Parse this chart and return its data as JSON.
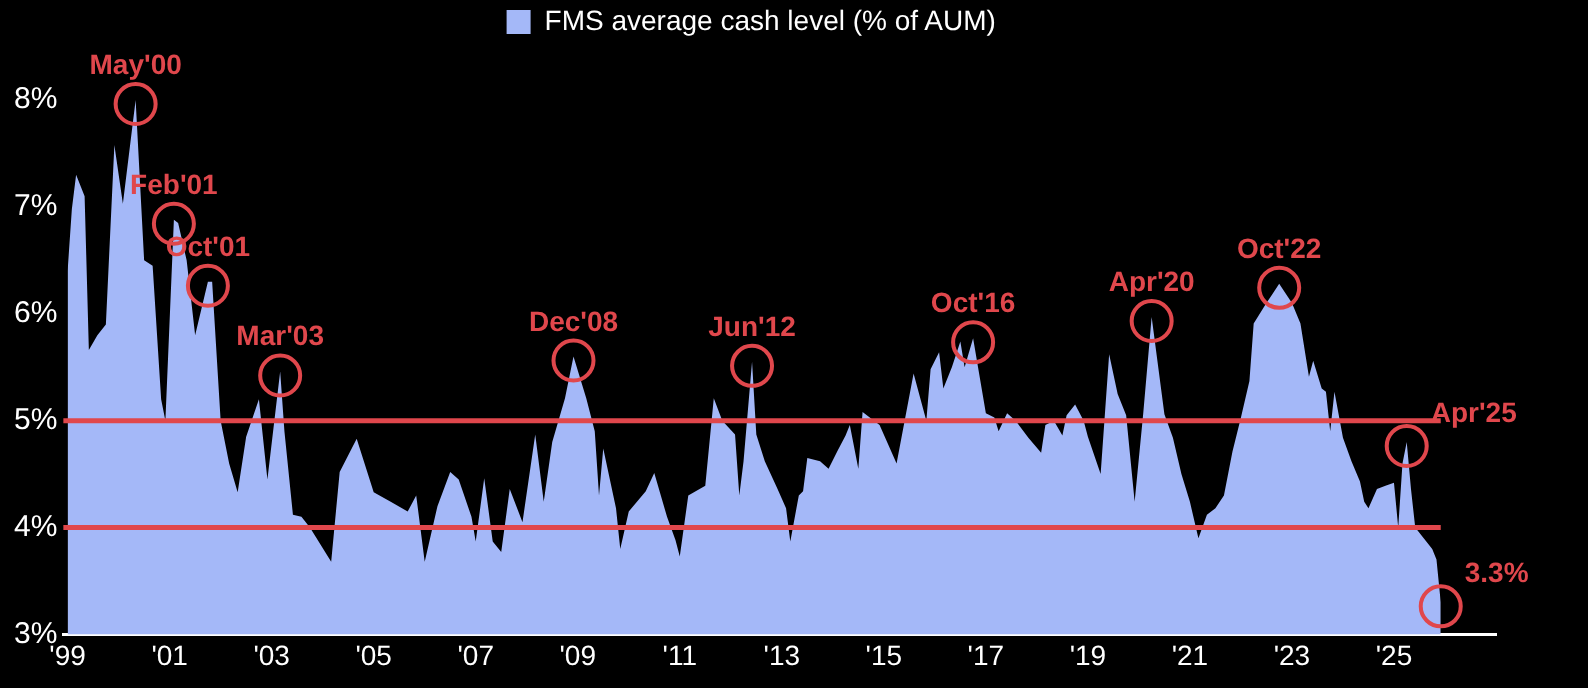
{
  "chart_data": {
    "type": "area",
    "legend": "top",
    "marker": "none",
    "grid": false,
    "series": [
      {
        "name": "FMS average cash level (% of AUM)",
        "color": "#a4b8f8",
        "x": [
          "1999-01",
          "1999-02",
          "1999-03",
          "1999-05",
          "1999-06",
          "1999-08",
          "1999-10",
          "1999-12",
          "2000-02",
          "2000-05",
          "2000-07",
          "2000-09",
          "2000-11",
          "2000-12",
          "2001-02",
          "2001-03",
          "2001-05",
          "2001-07",
          "2001-10",
          "2001-11",
          "2002-01",
          "2002-03",
          "2002-05",
          "2002-07",
          "2002-10",
          "2002-12",
          "2003-03",
          "2003-04",
          "2003-06",
          "2003-08",
          "2003-10",
          "2004-03",
          "2004-05",
          "2004-09",
          "2004-11",
          "2005-01",
          "2005-05",
          "2005-09",
          "2005-11",
          "2006-01",
          "2006-04",
          "2006-07",
          "2006-09",
          "2006-12",
          "2007-01",
          "2007-03",
          "2007-05",
          "2007-07",
          "2007-09",
          "2007-12",
          "2008-03",
          "2008-05",
          "2008-07",
          "2008-10",
          "2008-12",
          "2009-03",
          "2009-05",
          "2009-06",
          "2009-07",
          "2009-10",
          "2009-11",
          "2010-01",
          "2010-05",
          "2010-07",
          "2010-10",
          "2010-12",
          "2011-01",
          "2011-03",
          "2011-07",
          "2011-09",
          "2011-11",
          "2012-02",
          "2012-03",
          "2012-04",
          "2012-06",
          "2012-07",
          "2012-09",
          "2012-12",
          "2013-02",
          "2013-03",
          "2013-05",
          "2013-06",
          "2013-07",
          "2013-10",
          "2013-12",
          "2014-02",
          "2014-04",
          "2014-05",
          "2014-07",
          "2014-08",
          "2014-12",
          "2015-04",
          "2015-08",
          "2015-11",
          "2015-12",
          "2016-02",
          "2016-03",
          "2016-05",
          "2016-07",
          "2016-08",
          "2016-10",
          "2017-01",
          "2017-03",
          "2017-04",
          "2017-06",
          "2017-08",
          "2017-11",
          "2018-02",
          "2018-03",
          "2018-05",
          "2018-07",
          "2018-08",
          "2018-10",
          "2018-12",
          "2019-01",
          "2019-04",
          "2019-06",
          "2019-08",
          "2019-10",
          "2019-12",
          "2020-02",
          "2020-04",
          "2020-07",
          "2020-09",
          "2020-11",
          "2021-01",
          "2021-03",
          "2021-05",
          "2021-07",
          "2021-09",
          "2021-11",
          "2022-01",
          "2022-03",
          "2022-04",
          "2022-07",
          "2022-09",
          "2022-10",
          "2023-01",
          "2023-03",
          "2023-05",
          "2023-06",
          "2023-08",
          "2023-09",
          "2023-10",
          "2023-11",
          "2024-01",
          "2024-03",
          "2024-05",
          "2024-06",
          "2024-07",
          "2024-09",
          "2024-11",
          "2025-01",
          "2025-02",
          "2025-03",
          "2025-04",
          "2025-05",
          "2025-06",
          "2025-08",
          "2025-10",
          "2025-11",
          "2025-12"
        ],
        "values": [
          6.4,
          6.98,
          7.3,
          7.1,
          5.66,
          5.8,
          5.9,
          7.58,
          7.03,
          8.0,
          6.5,
          6.45,
          5.2,
          5.0,
          6.88,
          6.85,
          6.5,
          5.8,
          6.3,
          6.3,
          5.0,
          4.6,
          4.33,
          4.85,
          5.2,
          4.45,
          5.46,
          4.9,
          4.12,
          4.1,
          4.0,
          3.68,
          4.52,
          4.83,
          4.58,
          4.33,
          4.24,
          4.15,
          4.3,
          3.68,
          4.2,
          4.52,
          4.45,
          4.1,
          3.87,
          4.46,
          3.87,
          3.77,
          4.36,
          4.05,
          4.87,
          4.24,
          4.8,
          5.21,
          5.6,
          5.21,
          4.9,
          4.3,
          4.74,
          4.18,
          3.8,
          4.15,
          4.34,
          4.51,
          4.1,
          3.88,
          3.73,
          4.3,
          4.39,
          5.21,
          5.0,
          4.87,
          4.3,
          4.62,
          5.55,
          4.87,
          4.62,
          4.36,
          4.18,
          3.87,
          4.3,
          4.34,
          4.65,
          4.62,
          4.55,
          4.71,
          4.86,
          4.96,
          4.55,
          5.08,
          4.96,
          4.6,
          5.44,
          5.0,
          5.48,
          5.64,
          5.3,
          5.5,
          5.74,
          5.5,
          5.77,
          5.07,
          5.03,
          4.9,
          5.07,
          5.0,
          4.84,
          4.7,
          4.96,
          5.0,
          4.86,
          5.05,
          5.15,
          5.0,
          4.85,
          4.5,
          5.62,
          5.25,
          5.05,
          4.24,
          5.06,
          5.97,
          5.06,
          4.84,
          4.5,
          4.24,
          3.9,
          4.12,
          4.18,
          4.3,
          4.71,
          5.03,
          5.37,
          5.91,
          6.1,
          6.22,
          6.28,
          6.1,
          5.91,
          5.41,
          5.56,
          5.3,
          5.27,
          4.9,
          5.27,
          4.84,
          4.62,
          4.43,
          4.24,
          4.18,
          4.36,
          4.39,
          4.42,
          4.0,
          4.6,
          4.8,
          4.36,
          4.0,
          3.9,
          3.8,
          3.7,
          3.3
        ]
      }
    ],
    "xlim": [
      "1998-12",
      "2027-01"
    ],
    "xticks": [
      {
        "value": "1999",
        "label": "'99"
      },
      {
        "value": "2001",
        "label": "'01"
      },
      {
        "value": "2003",
        "label": "'03"
      },
      {
        "value": "2005",
        "label": "'05"
      },
      {
        "value": "2007",
        "label": "'07"
      },
      {
        "value": "2009",
        "label": "'09"
      },
      {
        "value": "2011",
        "label": "'11"
      },
      {
        "value": "2013",
        "label": "'13"
      },
      {
        "value": "2015",
        "label": "'15"
      },
      {
        "value": "2017",
        "label": "'17"
      },
      {
        "value": "2019",
        "label": "'19"
      },
      {
        "value": "2021",
        "label": "'21"
      },
      {
        "value": "2023",
        "label": "'23"
      },
      {
        "value": "2025",
        "label": "'25"
      }
    ],
    "ylim": [
      3,
      8
    ],
    "yticks": [
      {
        "value": 3,
        "label": "3%"
      },
      {
        "value": 4,
        "label": "4%"
      },
      {
        "value": 5,
        "label": "5%"
      },
      {
        "value": 6,
        "label": "6%"
      },
      {
        "value": 7,
        "label": "7%"
      },
      {
        "value": 8,
        "label": "8%"
      }
    ],
    "ref_lines": [
      {
        "axis": "y",
        "value": 5,
        "color": "#e0474c"
      },
      {
        "axis": "y",
        "value": 4,
        "color": "#e0474c"
      }
    ],
    "annotations": [
      {
        "text": "May'00",
        "x": "2000-05",
        "y": 8.0
      },
      {
        "text": "Feb'01",
        "x": "2001-02",
        "y": 6.88
      },
      {
        "text": "Oct'01",
        "x": "2001-10",
        "y": 6.3
      },
      {
        "text": "Mar'03",
        "x": "2003-03",
        "y": 5.46
      },
      {
        "text": "Dec'08",
        "x": "2008-12",
        "y": 5.6
      },
      {
        "text": "Jun'12",
        "x": "2012-06",
        "y": 5.55
      },
      {
        "text": "Oct'16",
        "x": "2016-10",
        "y": 5.77
      },
      {
        "text": "Apr'20",
        "x": "2020-04",
        "y": 5.97
      },
      {
        "text": "Oct'22",
        "x": "2022-10",
        "y": 6.28
      },
      {
        "text": "Apr'25",
        "x": "2025-04",
        "y": 4.8
      },
      {
        "text": "3.3%",
        "x": "2025-12",
        "y": 3.3
      }
    ]
  }
}
